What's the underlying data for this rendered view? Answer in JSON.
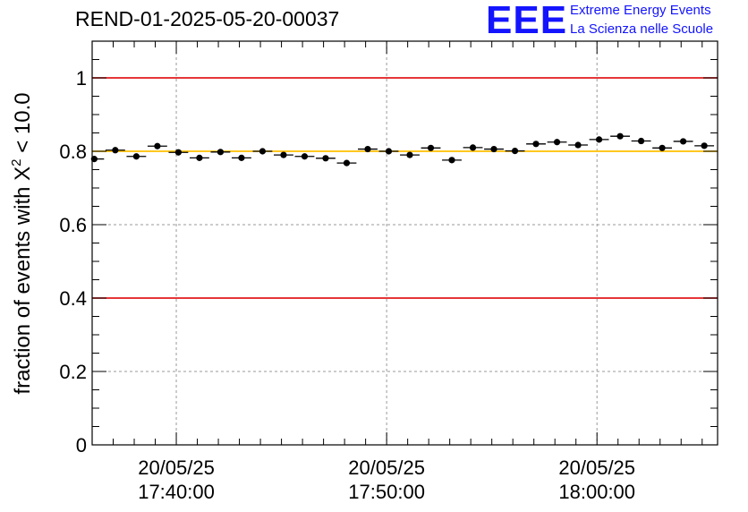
{
  "title": "REND-01-2025-05-20-00037",
  "logo": {
    "mark": "EEE",
    "line1": "Extreme Energy Events",
    "line2": "La Scienza nelle Scuole"
  },
  "colors": {
    "threshold": "#e31a1c",
    "reference": "#ffbf00",
    "marker": "#000000",
    "grid": "#9a9a9a",
    "logo": "#1414ff"
  },
  "chart_data": {
    "type": "scatter",
    "title": "REND-01-2025-05-20-00037",
    "ylabel_prefix": "fraction of events with ",
    "ylabel_symbol": "X",
    "ylabel_exponent": "2",
    "ylabel_suffix": " < 10.0",
    "xlabel": "",
    "xlim_minutes": [
      0,
      44.6
    ],
    "ylim": [
      0,
      1.1
    ],
    "grid": true,
    "bin_width_minutes": 1.5,
    "yticks": [
      {
        "value": 0,
        "label": "0"
      },
      {
        "value": 0.2,
        "label": "0.2"
      },
      {
        "value": 0.4,
        "label": "0.4"
      },
      {
        "value": 0.6,
        "label": "0.6"
      },
      {
        "value": 0.8,
        "label": "0.8"
      },
      {
        "value": 1.0,
        "label": "1"
      }
    ],
    "xticks": [
      {
        "minutes": 6.0,
        "date": "20/05/25",
        "time": "17:40:00"
      },
      {
        "minutes": 21.0,
        "date": "20/05/25",
        "time": "17:50:00"
      },
      {
        "minutes": 36.0,
        "date": "20/05/25",
        "time": "18:00:00"
      }
    ],
    "hlines": [
      {
        "name": "upper-threshold",
        "y": 1.0,
        "color": "#e31a1c"
      },
      {
        "name": "lower-threshold",
        "y": 0.4,
        "color": "#e31a1c"
      },
      {
        "name": "reference-line",
        "y": 0.8,
        "color": "#ffbf00"
      }
    ],
    "series": [
      {
        "name": "fraction",
        "x_minutes": [
          0.15,
          1.65,
          3.15,
          4.65,
          6.15,
          7.65,
          9.15,
          10.65,
          12.15,
          13.65,
          15.15,
          16.65,
          18.15,
          19.65,
          21.15,
          22.65,
          24.15,
          25.65,
          27.15,
          28.65,
          30.15,
          31.65,
          33.15,
          34.65,
          36.15,
          37.65,
          39.15,
          40.65,
          42.15,
          43.65
        ],
        "values": [
          0.779,
          0.803,
          0.786,
          0.814,
          0.797,
          0.782,
          0.798,
          0.782,
          0.8,
          0.79,
          0.786,
          0.781,
          0.768,
          0.806,
          0.8,
          0.79,
          0.809,
          0.776,
          0.81,
          0.806,
          0.801,
          0.82,
          0.825,
          0.817,
          0.832,
          0.841,
          0.828,
          0.809,
          0.827,
          0.815
        ],
        "errors": [
          0.007,
          0.006,
          0.007,
          0.006,
          0.007,
          0.006,
          0.007,
          0.006,
          0.006,
          0.007,
          0.007,
          0.006,
          0.007,
          0.006,
          0.007,
          0.006,
          0.006,
          0.007,
          0.006,
          0.006,
          0.006,
          0.006,
          0.006,
          0.006,
          0.006,
          0.006,
          0.006,
          0.006,
          0.006,
          0.006
        ]
      }
    ]
  }
}
